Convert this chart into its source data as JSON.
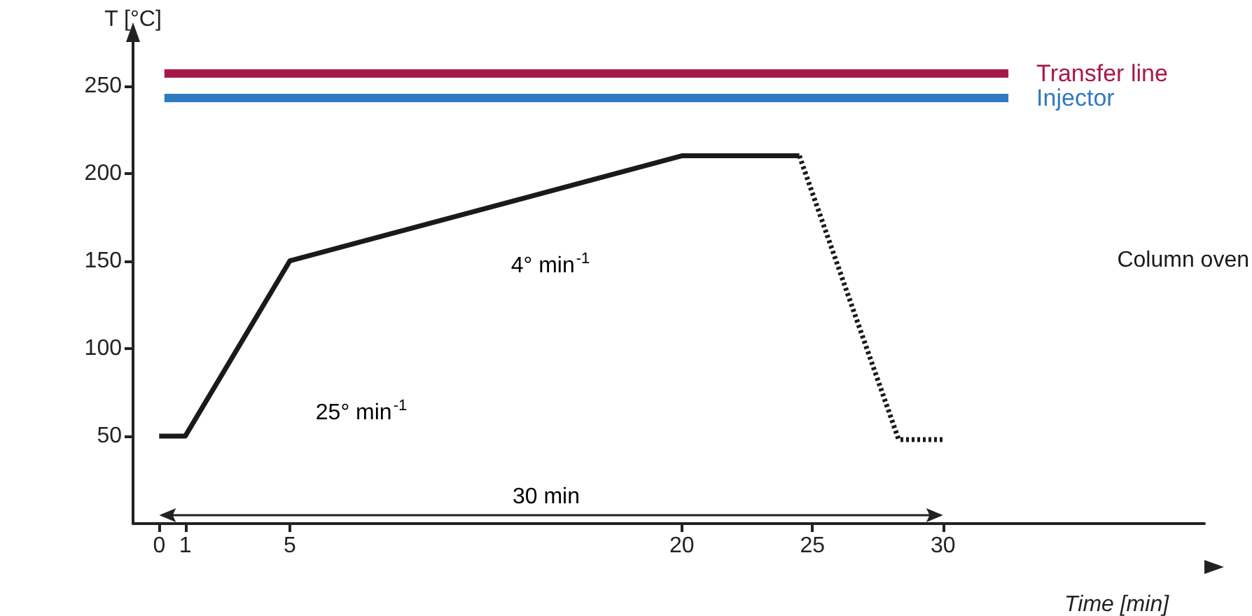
{
  "chart_data": {
    "type": "line",
    "xlabel": "Time [min]",
    "ylabel": "T [°C]",
    "xlim": [
      -1,
      40
    ],
    "xticks": [
      0,
      1,
      5,
      20,
      25,
      30
    ],
    "ylim": [
      0,
      275
    ],
    "yticks": [
      50,
      100,
      150,
      200,
      250
    ],
    "grid": false,
    "legend": false,
    "marker": "none",
    "series": [
      {
        "name": "Transfer line",
        "color": "#a8174a",
        "x": [
          0.2,
          32.5
        ],
        "values": [
          257,
          257
        ]
      },
      {
        "name": "Injector",
        "color": "#2f7ac0",
        "x": [
          0.2,
          32.5
        ],
        "values": [
          243,
          243
        ]
      },
      {
        "name": "Column oven",
        "color": "#1a1a1a",
        "x": [
          0,
          1,
          5,
          20,
          24.5
        ],
        "values": [
          50,
          50,
          150,
          210,
          210
        ]
      },
      {
        "color": "#1a1a1a",
        "line_style": "dotted",
        "x": [
          24.5,
          28.3,
          30
        ],
        "values": [
          210,
          48,
          48
        ]
      }
    ],
    "annotations": [
      "4° min$^{-1}$",
      "25° min$^{-1}$",
      "30 min"
    ]
  }
}
